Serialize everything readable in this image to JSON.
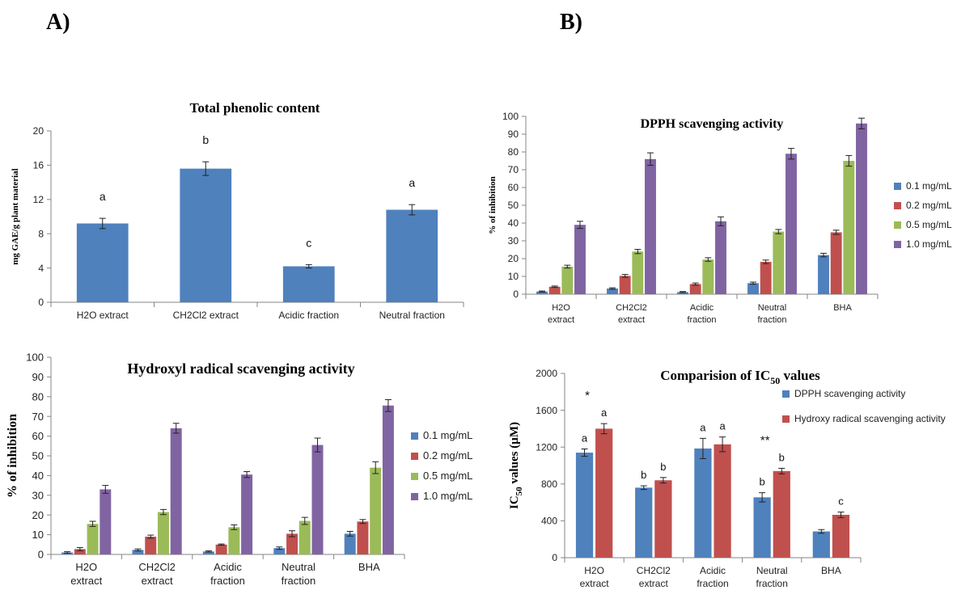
{
  "panel_labels": [
    "A)",
    "B)"
  ],
  "chart_data": [
    {
      "id": "tpc",
      "type": "bar",
      "title": "Total phenolic content",
      "ylabel": "mg GAE/g plant material",
      "ylim": [
        0,
        20
      ],
      "yticks": [
        0,
        4,
        8,
        12,
        16,
        20
      ],
      "categories": [
        [
          "H2O extract"
        ],
        [
          "CH2Cl2 extract"
        ],
        [
          "Acidic fraction"
        ],
        [
          "Neutral fraction"
        ]
      ],
      "series": [
        {
          "color": "#4F81BD",
          "values": [
            9.2,
            15.6,
            4.2,
            10.8
          ],
          "errors": [
            0.6,
            0.8,
            0.2,
            0.6
          ],
          "annotations": [
            "a",
            "b",
            "c",
            "a"
          ]
        }
      ],
      "grid": false,
      "legend": null
    },
    {
      "id": "dpph",
      "type": "bar",
      "title": "DPPH scavenging activity",
      "ylabel": "% of inhibition",
      "ylim": [
        0,
        100
      ],
      "yticks": [
        0,
        10,
        20,
        30,
        40,
        50,
        60,
        70,
        80,
        90,
        100
      ],
      "categories": [
        [
          "H2O",
          "extract"
        ],
        [
          "CH2Cl2",
          "extract"
        ],
        [
          "Acidic",
          "fraction"
        ],
        [
          "Neutral",
          "fraction"
        ],
        [
          "BHA"
        ]
      ],
      "series": [
        {
          "name": "0.1 mg/mL",
          "color": "#4F81BD",
          "values": [
            1.5,
            3.2,
            1.2,
            6.2,
            22.0
          ],
          "errors": [
            0.3,
            0.4,
            0.3,
            0.6,
            1.0
          ]
        },
        {
          "name": "0.2 mg/mL",
          "color": "#C0504D",
          "values": [
            4.2,
            10.3,
            5.7,
            18.2,
            34.8
          ],
          "errors": [
            0.4,
            0.8,
            0.6,
            1.0,
            1.2
          ]
        },
        {
          "name": "0.5 mg/mL",
          "color": "#9BBB59",
          "values": [
            15.5,
            24.0,
            19.5,
            35.2,
            75.0
          ],
          "errors": [
            0.8,
            1.2,
            1.0,
            1.2,
            3.0
          ]
        },
        {
          "name": "1.0 mg/mL",
          "color": "#8064A2",
          "values": [
            39.0,
            76.0,
            41.0,
            79.0,
            96.0
          ],
          "errors": [
            2.0,
            3.5,
            2.5,
            3.0,
            3.0
          ]
        }
      ],
      "grid": false,
      "legend": "right"
    },
    {
      "id": "hydroxyl",
      "type": "bar",
      "title": "Hydroxyl radical scavenging activity",
      "ylabel": "% of inhibition",
      "ylim": [
        0,
        100
      ],
      "yticks": [
        0,
        10,
        20,
        30,
        40,
        50,
        60,
        70,
        80,
        90,
        100
      ],
      "categories": [
        [
          "H2O",
          "extract"
        ],
        [
          "CH2Cl2",
          "extract"
        ],
        [
          "Acidic",
          "fraction"
        ],
        [
          "Neutral",
          "fraction"
        ],
        [
          "BHA"
        ]
      ],
      "series": [
        {
          "name": "0.1 mg/mL",
          "color": "#4F81BD",
          "values": [
            1.0,
            2.3,
            1.5,
            3.2,
            10.5
          ],
          "errors": [
            0.4,
            0.5,
            0.3,
            0.6,
            1.2
          ]
        },
        {
          "name": "0.2 mg/mL",
          "color": "#C0504D",
          "values": [
            2.7,
            9.0,
            5.0,
            10.5,
            16.7
          ],
          "errors": [
            0.8,
            0.8,
            0.3,
            1.5,
            1.0
          ]
        },
        {
          "name": "0.5 mg/mL",
          "color": "#9BBB59",
          "values": [
            15.5,
            21.5,
            13.8,
            17.0,
            44.0
          ],
          "errors": [
            1.3,
            1.3,
            1.2,
            1.8,
            3.0
          ]
        },
        {
          "name": "1.0 mg/mL",
          "color": "#8064A2",
          "values": [
            33.0,
            64.0,
            40.5,
            55.5,
            75.5
          ],
          "errors": [
            2.0,
            2.5,
            1.5,
            3.5,
            3.0
          ]
        }
      ],
      "grid": false,
      "legend": "right"
    },
    {
      "id": "ic50",
      "type": "bar",
      "title": "Comparision of IC",
      "title_sub": "50",
      "title_after": " values",
      "ylabel": "IC",
      "ylabel_sub": "50",
      "ylabel_after": " values (µM)",
      "ylim": [
        0,
        2000
      ],
      "yticks": [
        0,
        400,
        800,
        1200,
        1600,
        2000
      ],
      "categories": [
        [
          "H2O",
          "extract"
        ],
        [
          "CH2Cl2",
          "extract"
        ],
        [
          "Acidic",
          "fraction"
        ],
        [
          "Neutral",
          "fraction"
        ],
        [
          "BHA"
        ]
      ],
      "series": [
        {
          "name": "DPPH scavenging activity",
          "color": "#4F81BD",
          "values": [
            1140,
            760,
            1185,
            655,
            285
          ],
          "errors": [
            40,
            20,
            110,
            50,
            20
          ],
          "annotations": [
            "a",
            "b",
            "a",
            "b",
            ""
          ]
        },
        {
          "name": "Hydroxy radical scavenging activity",
          "color": "#C0504D",
          "values": [
            1400,
            840,
            1230,
            940,
            465
          ],
          "errors": [
            55,
            30,
            80,
            30,
            30
          ],
          "annotations": [
            "a",
            "b",
            "a",
            "b",
            "c"
          ]
        }
      ],
      "group_marks": [
        "*",
        "",
        "",
        "**",
        ""
      ],
      "grid": false,
      "legend": "top-right"
    }
  ]
}
